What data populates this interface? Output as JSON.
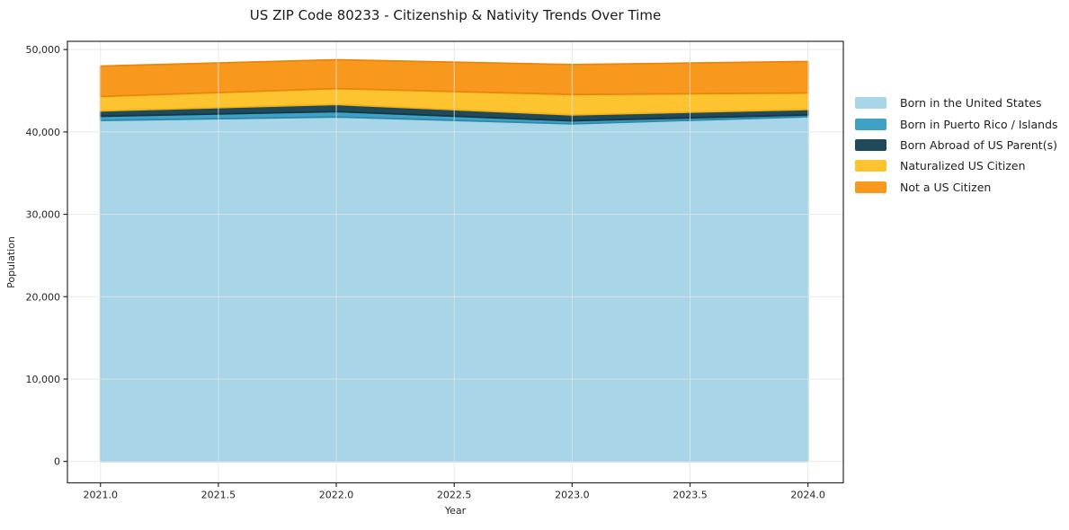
{
  "title": "US ZIP Code 80233 - Citizenship & Nativity Trends Over Time",
  "chart_data": {
    "type": "area",
    "stacked": true,
    "title": "US ZIP Code 80233 - Citizenship & Nativity Trends Over Time",
    "xlabel": "Year",
    "ylabel": "Population",
    "x": [
      2021,
      2022,
      2023,
      2024
    ],
    "x_ticks": [
      2021.0,
      2021.5,
      2022.0,
      2022.5,
      2023.0,
      2023.5,
      2024.0
    ],
    "x_tick_labels": [
      "2021.0",
      "2021.5",
      "2022.0",
      "2022.5",
      "2023.0",
      "2023.5",
      "2024.0"
    ],
    "y_ticks": [
      0,
      10000,
      20000,
      30000,
      40000,
      50000
    ],
    "y_tick_labels": [
      "0",
      "10,000",
      "20,000",
      "30,000",
      "40,000",
      "50,000"
    ],
    "xlim": [
      2020.86,
      2024.15
    ],
    "ylim": [
      -2600,
      51000
    ],
    "grid": true,
    "legend_position": "right-outside",
    "series": [
      {
        "name": "Born in the United States",
        "color": "#a8d5e8",
        "edge": "#90c6de",
        "values": [
          41390,
          41820,
          40980,
          41850
        ]
      },
      {
        "name": "Born in Puerto Rico / Islands",
        "color": "#3fa2c4",
        "edge": "#2d89ab",
        "values": [
          510,
          650,
          370,
          220
        ]
      },
      {
        "name": "Born Abroad of US Parent(s)",
        "color": "#1f4a5c",
        "edge": "#153744",
        "values": [
          655,
          870,
          720,
          655
        ]
      },
      {
        "name": "Naturalized US Citizen",
        "color": "#fdc42f",
        "edge": "#f3b113",
        "values": [
          1750,
          1930,
          2475,
          2005
        ]
      },
      {
        "name": "Not a US Citizen",
        "color": "#f8991d",
        "edge": "#e9860e",
        "values": [
          3685,
          3490,
          3630,
          3820
        ]
      }
    ],
    "totals": [
      47990,
      48760,
      48175,
      48550
    ]
  },
  "colors": {
    "spine": "#2b2b2b",
    "tick_text": "#262626",
    "grid": "rgba(228,228,228,0.8)"
  }
}
